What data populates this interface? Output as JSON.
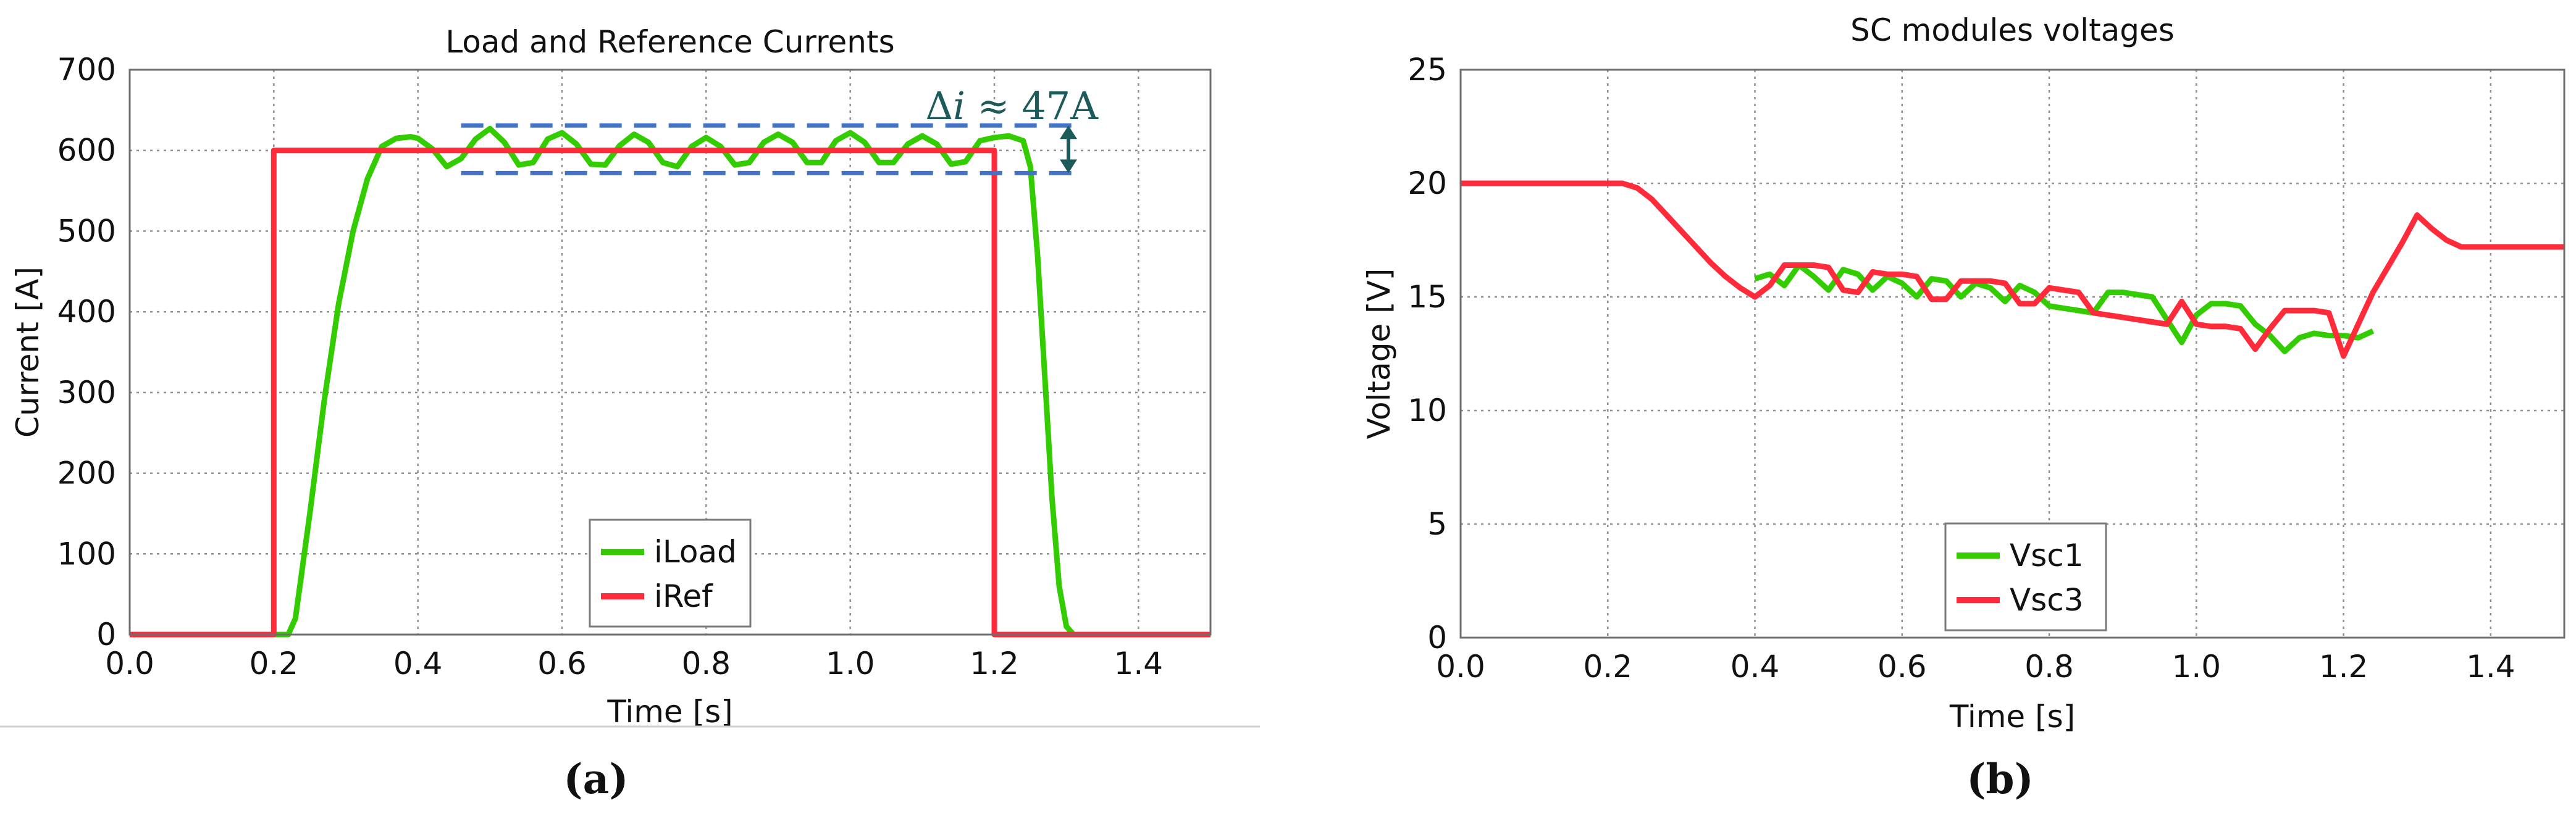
{
  "chart_data": [
    {
      "type": "line",
      "title": "Load and Reference Currents",
      "xlabel": "Time [s]",
      "ylabel": "Current [A]",
      "xlim": [
        0,
        1.5
      ],
      "ylim": [
        0,
        700
      ],
      "xticks": [
        "0.0",
        "0.2",
        "0.4",
        "0.6",
        "0.8",
        "1.0",
        "1.2",
        "1.4"
      ],
      "yticks": [
        "0",
        "100",
        "200",
        "300",
        "400",
        "500",
        "600",
        "700"
      ],
      "grid": true,
      "legend": "bottom-center",
      "panel_label": "(a)",
      "annotation": {
        "prefix": "Δ",
        "variable": "i",
        "text": " ≈ 47A",
        "upper": 631,
        "lower": 572,
        "x_start": 0.46,
        "x_end": 1.32
      },
      "series": [
        {
          "name": "iLoad",
          "color": "#33cc00",
          "x": [
            0,
            0.22,
            0.23,
            0.25,
            0.27,
            0.29,
            0.31,
            0.33,
            0.35,
            0.37,
            0.39,
            0.4,
            0.42,
            0.44,
            0.46,
            0.48,
            0.5,
            0.52,
            0.54,
            0.56,
            0.58,
            0.6,
            0.62,
            0.64,
            0.66,
            0.68,
            0.7,
            0.72,
            0.74,
            0.76,
            0.78,
            0.8,
            0.82,
            0.84,
            0.86,
            0.88,
            0.9,
            0.92,
            0.94,
            0.96,
            0.98,
            1.0,
            1.02,
            1.04,
            1.06,
            1.08,
            1.1,
            1.12,
            1.14,
            1.16,
            1.18,
            1.2,
            1.22,
            1.24,
            1.25,
            1.26,
            1.27,
            1.28,
            1.29,
            1.3,
            1.31,
            1.5
          ],
          "y": [
            0,
            0,
            20,
            150,
            290,
            410,
            500,
            565,
            605,
            615,
            617,
            615,
            602,
            580,
            590,
            614,
            627,
            610,
            582,
            585,
            614,
            622,
            608,
            583,
            582,
            606,
            620,
            610,
            585,
            580,
            605,
            616,
            605,
            582,
            585,
            610,
            620,
            610,
            585,
            585,
            612,
            622,
            610,
            585,
            585,
            608,
            618,
            608,
            583,
            586,
            612,
            616,
            618,
            612,
            580,
            470,
            320,
            170,
            60,
            10,
            0,
            0
          ]
        },
        {
          "name": "iRef",
          "color": "#ff2a3a",
          "x": [
            0,
            0.2,
            0.2,
            1.2,
            1.2,
            1.5
          ],
          "y": [
            0,
            0,
            600,
            600,
            0,
            0
          ]
        }
      ]
    },
    {
      "type": "line",
      "title": "SC modules voltages",
      "xlabel": "Time [s]",
      "ylabel": "Voltage [V]",
      "xlim": [
        0,
        1.5
      ],
      "ylim": [
        0,
        25
      ],
      "xticks": [
        "0.0",
        "0.2",
        "0.4",
        "0.6",
        "0.8",
        "1.0",
        "1.2",
        "1.4"
      ],
      "yticks": [
        "0",
        "5",
        "10",
        "15",
        "20",
        "25"
      ],
      "grid": true,
      "legend": "bottom-center",
      "panel_label": "(b)",
      "series": [
        {
          "name": "Vsc1",
          "color": "#33cc00",
          "x": [
            0.4,
            0.42,
            0.44,
            0.46,
            0.48,
            0.5,
            0.52,
            0.54,
            0.56,
            0.58,
            0.6,
            0.62,
            0.64,
            0.66,
            0.68,
            0.7,
            0.72,
            0.74,
            0.76,
            0.78,
            0.8,
            0.82,
            0.84,
            0.86,
            0.88,
            0.9,
            0.92,
            0.94,
            0.96,
            0.98,
            1.0,
            1.02,
            1.04,
            1.06,
            1.08,
            1.1,
            1.12,
            1.14,
            1.16,
            1.18,
            1.2,
            1.22,
            1.24
          ],
          "y": [
            15.8,
            16.0,
            15.5,
            16.4,
            15.9,
            15.3,
            16.2,
            16.0,
            15.3,
            15.9,
            15.6,
            15.0,
            15.8,
            15.7,
            15.0,
            15.6,
            15.4,
            14.8,
            15.5,
            15.2,
            14.6,
            14.5,
            14.4,
            14.3,
            15.2,
            15.2,
            15.1,
            15.0,
            14.0,
            13.0,
            14.2,
            14.7,
            14.7,
            14.6,
            13.8,
            13.3,
            12.6,
            13.2,
            13.4,
            13.3,
            13.3,
            13.2,
            13.5
          ]
        },
        {
          "name": "Vsc3",
          "color": "#ff2a3a",
          "x": [
            0,
            0.22,
            0.24,
            0.26,
            0.28,
            0.3,
            0.32,
            0.34,
            0.36,
            0.38,
            0.4,
            0.42,
            0.44,
            0.46,
            0.48,
            0.5,
            0.52,
            0.54,
            0.56,
            0.58,
            0.6,
            0.62,
            0.64,
            0.66,
            0.68,
            0.7,
            0.72,
            0.74,
            0.76,
            0.78,
            0.8,
            0.82,
            0.84,
            0.86,
            0.88,
            0.9,
            0.92,
            0.94,
            0.96,
            0.98,
            1.0,
            1.02,
            1.04,
            1.06,
            1.08,
            1.1,
            1.12,
            1.14,
            1.16,
            1.18,
            1.2,
            1.22,
            1.24,
            1.26,
            1.28,
            1.3,
            1.32,
            1.34,
            1.36,
            1.38,
            1.4,
            1.42,
            1.44,
            1.46,
            1.48,
            1.5
          ],
          "y": [
            20.0,
            20.0,
            19.8,
            19.3,
            18.6,
            17.9,
            17.2,
            16.5,
            15.9,
            15.4,
            15.0,
            15.5,
            16.4,
            16.4,
            16.4,
            16.3,
            15.3,
            15.2,
            16.1,
            16.0,
            16.0,
            15.9,
            14.9,
            14.9,
            15.7,
            15.7,
            15.7,
            15.6,
            14.7,
            14.7,
            15.4,
            15.3,
            15.2,
            14.3,
            14.2,
            14.1,
            14.0,
            13.9,
            13.8,
            14.8,
            13.8,
            13.7,
            13.7,
            13.6,
            12.7,
            13.6,
            14.4,
            14.4,
            14.4,
            14.3,
            12.4,
            13.8,
            15.2,
            16.3,
            17.4,
            18.6,
            18.0,
            17.5,
            17.2,
            17.2,
            17.2,
            17.2,
            17.2,
            17.2,
            17.2,
            17.2
          ]
        }
      ]
    }
  ]
}
